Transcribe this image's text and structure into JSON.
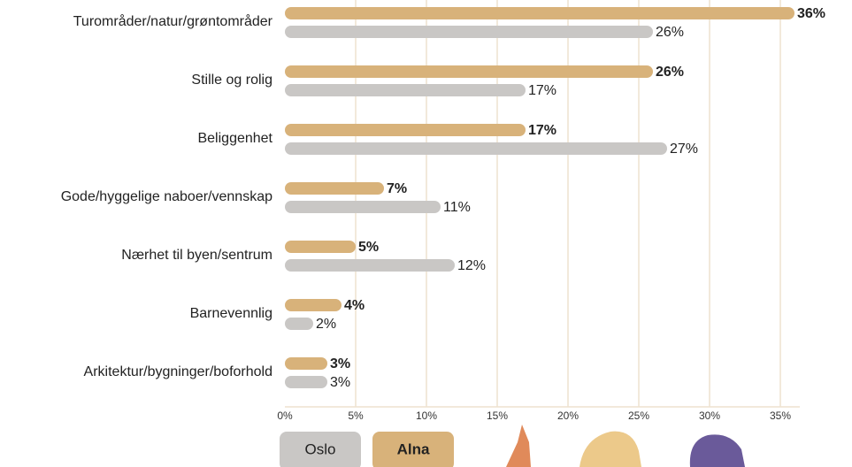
{
  "chart_data": {
    "type": "bar",
    "orientation": "horizontal",
    "categories": [
      "Turområder/natur/grøntområder",
      "Stille og rolig",
      "Beliggenhet",
      "Gode/hyggelige naboer/vennskap",
      "Nærhet til byen/sentrum",
      "Barnevennlig",
      "Arkitektur/bygninger/boforhold"
    ],
    "series": [
      {
        "name": "Alna",
        "color": "#d8b27a",
        "values": [
          36,
          26,
          17,
          7,
          5,
          4,
          3
        ],
        "value_labels": [
          "36%",
          "26%",
          "17%",
          "7%",
          "5%",
          "4%",
          "3%"
        ]
      },
      {
        "name": "Oslo",
        "color": "#c9c7c5",
        "values": [
          26,
          17,
          27,
          11,
          12,
          2,
          3
        ],
        "value_labels": [
          "26%",
          "17%",
          "27%",
          "11%",
          "12%",
          "2%",
          "3%"
        ]
      }
    ],
    "xlim": [
      0,
      37
    ],
    "xticks": [
      {
        "value": 0,
        "label": "0%"
      },
      {
        "value": 5,
        "label": "5%"
      },
      {
        "value": 10,
        "label": "10%"
      },
      {
        "value": 15,
        "label": "15%"
      },
      {
        "value": 20,
        "label": "20%"
      },
      {
        "value": 25,
        "label": "25%"
      },
      {
        "value": 30,
        "label": "30%"
      },
      {
        "value": 35,
        "label": "35%"
      }
    ],
    "grid": true
  }
}
